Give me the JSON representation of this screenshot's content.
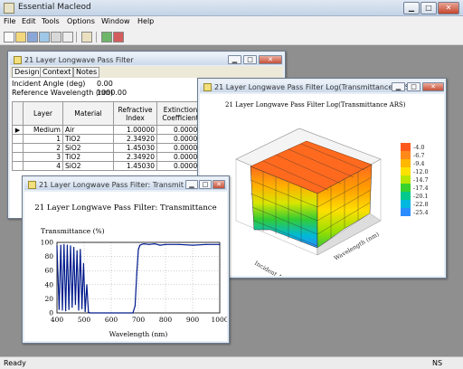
{
  "app": {
    "title": "Essential Macleod"
  },
  "menu": [
    "File",
    "Edit",
    "Tools",
    "Options",
    "Window",
    "Help"
  ],
  "status": {
    "left": "Ready",
    "right": "NS"
  },
  "design_window": {
    "title": "21 Layer Longwave Pass Filter",
    "tabs": [
      "Design",
      "Context",
      "Notes"
    ],
    "fields": [
      {
        "label": "Incident Angle (deg)",
        "value": "0.00"
      },
      {
        "label": "Reference Wavelength (nm)",
        "value": "1000.00"
      }
    ],
    "columns": [
      "Layer",
      "Material",
      "Refractive Index",
      "Extinction Coefficient"
    ],
    "rows": [
      {
        "layer": "Medium",
        "material": "Air",
        "index": "1.00000",
        "ext": "0.00000"
      },
      {
        "layer": "1",
        "material": "TiO2",
        "index": "2.34920",
        "ext": "0.00000"
      },
      {
        "layer": "2",
        "material": "SiO2",
        "index": "1.45030",
        "ext": "0.00000"
      },
      {
        "layer": "3",
        "material": "TiO2",
        "index": "2.34920",
        "ext": "0.00000"
      },
      {
        "layer": "4",
        "material": "SiO2",
        "index": "1.45030",
        "ext": "0.00000"
      }
    ]
  },
  "log_window": {
    "title": "21 Layer Longwave Pass Filter Log(Transmittance ARS)",
    "plot_title": "21 Layer Longwave Pass Filter Log(Transmittance ARS)",
    "axis_wavelength": "Wavelength (nm)",
    "axis_angle": "Incident Angle (deg)",
    "legend": [
      {
        "label": "-4.0",
        "color": "#ff5a1e"
      },
      {
        "label": "-6.7",
        "color": "#ff8a1a"
      },
      {
        "label": "-9.4",
        "color": "#ffb700"
      },
      {
        "label": "-12.0",
        "color": "#ffe100"
      },
      {
        "label": "-14.7",
        "color": "#b8e600"
      },
      {
        "label": "-17.4",
        "color": "#38d22e"
      },
      {
        "label": "-20.1",
        "color": "#00c98c"
      },
      {
        "label": "-22.8",
        "color": "#00b7e0"
      },
      {
        "label": "-25.4",
        "color": "#2a8cff"
      }
    ]
  },
  "trans_window": {
    "title": "21 Layer Longwave Pass Filter: Transmittance",
    "chart_data": {
      "type": "line",
      "title": "21 Layer Longwave Pass Filter: Transmittance",
      "xlabel": "Wavelength (nm)",
      "ylabel": "Transmittance (%)",
      "xlim": [
        400,
        1000
      ],
      "ylim": [
        0,
        100
      ],
      "xticks": [
        "400",
        "500",
        "600",
        "700",
        "800",
        "900",
        "1000"
      ],
      "yticks": [
        "0",
        "20",
        "40",
        "60",
        "80",
        "100"
      ],
      "grid": true,
      "series": [
        {
          "x": [
            400,
            408,
            414,
            420,
            426,
            432,
            438,
            444,
            450,
            456,
            462,
            468,
            474,
            480,
            486,
            492,
            498,
            504,
            510,
            516,
            522,
            600,
            680,
            688,
            694,
            700,
            706,
            712,
            720,
            740,
            760,
            780,
            800,
            850,
            900,
            950,
            1000
          ],
          "y": [
            95,
            5,
            96,
            4,
            97,
            3,
            96,
            5,
            95,
            8,
            93,
            12,
            88,
            4,
            90,
            6,
            70,
            2,
            40,
            1,
            0,
            0,
            0,
            10,
            55,
            90,
            96,
            97,
            98,
            97,
            98,
            96,
            97,
            97,
            96,
            97,
            97
          ]
        }
      ]
    }
  }
}
